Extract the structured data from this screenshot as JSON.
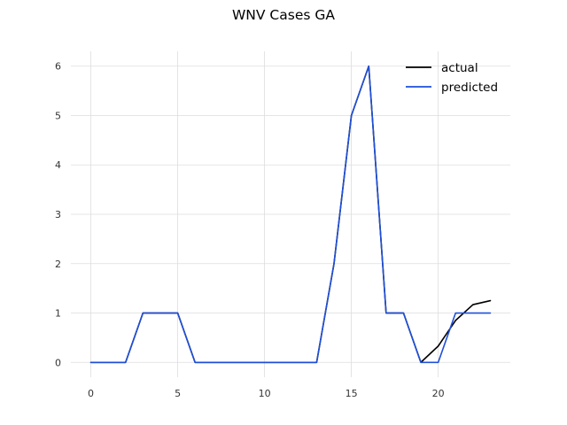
{
  "chart_data": {
    "type": "line",
    "title": "WNV Cases GA",
    "xlabel": "",
    "ylabel": "",
    "xlim": [
      -1.15,
      24.15
    ],
    "ylim": [
      -0.3,
      6.3
    ],
    "x_ticks": [
      0,
      5,
      10,
      15,
      20
    ],
    "y_ticks": [
      0,
      1,
      2,
      3,
      4,
      5,
      6
    ],
    "grid": true,
    "legend_position": "top-right",
    "x": [
      0,
      1,
      2,
      3,
      4,
      5,
      6,
      7,
      8,
      9,
      10,
      11,
      12,
      13,
      14,
      15,
      16,
      17,
      18,
      19,
      20,
      21,
      22,
      23
    ],
    "series": [
      {
        "name": "actual",
        "color": "#000000",
        "values": [
          0,
          0,
          0,
          1,
          1,
          1,
          0,
          0,
          0,
          0,
          0,
          0,
          0,
          0,
          2,
          5,
          6,
          1,
          1,
          0,
          0.33,
          0.85,
          1.17,
          1.25
        ]
      },
      {
        "name": "predicted",
        "color": "#1f4fd9",
        "values": [
          0,
          0,
          0,
          1,
          1,
          1,
          0,
          0,
          0,
          0,
          0,
          0,
          0,
          0,
          2,
          5,
          6,
          1,
          1,
          0,
          0,
          1,
          1,
          1
        ]
      }
    ]
  }
}
